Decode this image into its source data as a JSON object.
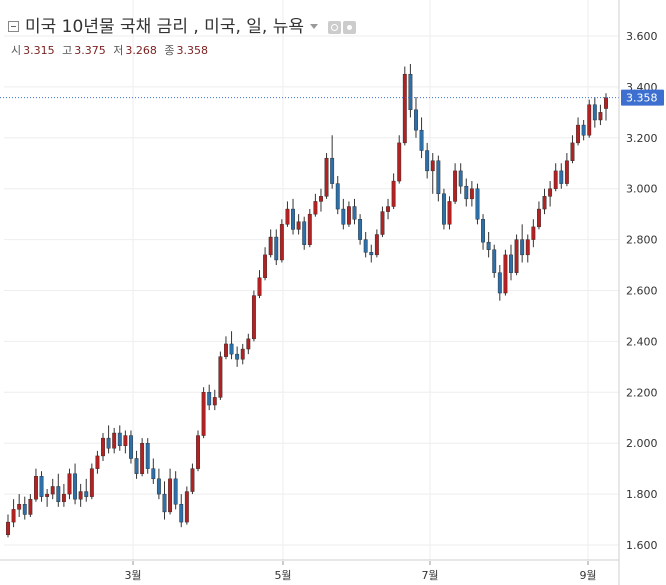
{
  "title": "미국 10년물 국채 금리 , 미국, 일, 뉴욕",
  "ohlc": {
    "open_label": "시",
    "open": "3.315",
    "high_label": "고",
    "high": "3.375",
    "low_label": "저",
    "low": "3.268",
    "close_label": "종",
    "close": "3.358"
  },
  "last_price_label": "3.358",
  "colors": {
    "up": "#b22222",
    "down": "#2e6fa8",
    "wick": "#333333",
    "last_line": "#3d6fd1",
    "last_badge": "#3d6fd1"
  },
  "chart_data": {
    "type": "candlestick",
    "x_tick_labels": [
      "3월",
      "5월",
      "7월",
      "9월"
    ],
    "y_tick_labels": [
      "3.600",
      "3.400",
      "3.200",
      "3.000",
      "2.800",
      "2.600",
      "2.400",
      "2.200",
      "2.000",
      "1.800",
      "1.600"
    ],
    "ylim": [
      1.55,
      3.65
    ],
    "last_price": 3.358,
    "candles": [
      [
        1.64,
        1.72,
        1.63,
        1.69
      ],
      [
        1.69,
        1.78,
        1.67,
        1.74
      ],
      [
        1.74,
        1.8,
        1.71,
        1.76
      ],
      [
        1.76,
        1.79,
        1.7,
        1.72
      ],
      [
        1.72,
        1.8,
        1.71,
        1.78
      ],
      [
        1.78,
        1.9,
        1.77,
        1.87
      ],
      [
        1.87,
        1.89,
        1.77,
        1.79
      ],
      [
        1.79,
        1.82,
        1.75,
        1.8
      ],
      [
        1.8,
        1.86,
        1.78,
        1.83
      ],
      [
        1.83,
        1.88,
        1.75,
        1.77
      ],
      [
        1.77,
        1.84,
        1.75,
        1.8
      ],
      [
        1.8,
        1.9,
        1.78,
        1.88
      ],
      [
        1.88,
        1.92,
        1.76,
        1.78
      ],
      [
        1.78,
        1.84,
        1.75,
        1.81
      ],
      [
        1.81,
        1.86,
        1.77,
        1.79
      ],
      [
        1.79,
        1.92,
        1.78,
        1.9
      ],
      [
        1.9,
        1.97,
        1.88,
        1.95
      ],
      [
        1.95,
        2.04,
        1.93,
        2.02
      ],
      [
        2.02,
        2.07,
        1.96,
        1.98
      ],
      [
        1.98,
        2.06,
        1.96,
        2.04
      ],
      [
        2.04,
        2.07,
        1.97,
        1.99
      ],
      [
        1.99,
        2.05,
        1.96,
        2.03
      ],
      [
        2.03,
        2.05,
        1.92,
        1.94
      ],
      [
        1.94,
        1.97,
        1.86,
        1.88
      ],
      [
        1.88,
        2.02,
        1.87,
        2.0
      ],
      [
        2.0,
        2.02,
        1.88,
        1.9
      ],
      [
        1.9,
        1.94,
        1.84,
        1.86
      ],
      [
        1.86,
        1.9,
        1.78,
        1.8
      ],
      [
        1.8,
        1.85,
        1.7,
        1.73
      ],
      [
        1.73,
        1.9,
        1.72,
        1.86
      ],
      [
        1.86,
        1.89,
        1.74,
        1.76
      ],
      [
        1.76,
        1.8,
        1.67,
        1.69
      ],
      [
        1.69,
        1.83,
        1.68,
        1.81
      ],
      [
        1.81,
        1.92,
        1.8,
        1.9
      ],
      [
        1.9,
        2.05,
        1.89,
        2.03
      ],
      [
        2.03,
        2.22,
        2.02,
        2.2
      ],
      [
        2.2,
        2.23,
        2.13,
        2.15
      ],
      [
        2.15,
        2.21,
        2.13,
        2.18
      ],
      [
        2.18,
        2.36,
        2.17,
        2.34
      ],
      [
        2.34,
        2.42,
        2.33,
        2.39
      ],
      [
        2.39,
        2.44,
        2.33,
        2.35
      ],
      [
        2.35,
        2.38,
        2.3,
        2.33
      ],
      [
        2.33,
        2.39,
        2.31,
        2.37
      ],
      [
        2.37,
        2.43,
        2.35,
        2.41
      ],
      [
        2.41,
        2.6,
        2.4,
        2.58
      ],
      [
        2.58,
        2.68,
        2.57,
        2.65
      ],
      [
        2.65,
        2.77,
        2.64,
        2.74
      ],
      [
        2.74,
        2.84,
        2.73,
        2.81
      ],
      [
        2.81,
        2.84,
        2.7,
        2.72
      ],
      [
        2.72,
        2.88,
        2.71,
        2.86
      ],
      [
        2.86,
        2.95,
        2.85,
        2.92
      ],
      [
        2.92,
        2.96,
        2.82,
        2.84
      ],
      [
        2.84,
        2.9,
        2.82,
        2.87
      ],
      [
        2.87,
        2.89,
        2.76,
        2.78
      ],
      [
        2.78,
        2.92,
        2.77,
        2.9
      ],
      [
        2.9,
        2.98,
        2.89,
        2.95
      ],
      [
        2.95,
        3.0,
        2.91,
        2.97
      ],
      [
        2.97,
        3.14,
        2.96,
        3.12
      ],
      [
        3.12,
        3.21,
        3.0,
        3.02
      ],
      [
        3.02,
        3.05,
        2.9,
        2.92
      ],
      [
        2.92,
        2.96,
        2.84,
        2.86
      ],
      [
        2.86,
        2.95,
        2.85,
        2.93
      ],
      [
        2.93,
        2.96,
        2.86,
        2.88
      ],
      [
        2.88,
        2.9,
        2.78,
        2.8
      ],
      [
        2.8,
        2.83,
        2.73,
        2.75
      ],
      [
        2.75,
        2.78,
        2.71,
        2.74
      ],
      [
        2.74,
        2.84,
        2.73,
        2.82
      ],
      [
        2.82,
        2.93,
        2.81,
        2.91
      ],
      [
        2.91,
        2.96,
        2.88,
        2.93
      ],
      [
        2.93,
        3.06,
        2.92,
        3.03
      ],
      [
        3.03,
        3.21,
        3.02,
        3.18
      ],
      [
        3.18,
        3.48,
        3.17,
        3.45
      ],
      [
        3.45,
        3.49,
        3.28,
        3.31
      ],
      [
        3.31,
        3.36,
        3.2,
        3.23
      ],
      [
        3.23,
        3.28,
        3.12,
        3.15
      ],
      [
        3.15,
        3.18,
        3.04,
        3.07
      ],
      [
        3.07,
        3.14,
        2.98,
        3.11
      ],
      [
        3.11,
        3.13,
        2.95,
        2.98
      ],
      [
        2.98,
        3.0,
        2.84,
        2.86
      ],
      [
        2.86,
        2.97,
        2.84,
        2.95
      ],
      [
        2.95,
        3.1,
        2.94,
        3.07
      ],
      [
        3.07,
        3.1,
        2.98,
        3.01
      ],
      [
        3.01,
        3.04,
        2.93,
        2.96
      ],
      [
        2.96,
        3.03,
        2.93,
        3.0
      ],
      [
        3.0,
        3.02,
        2.86,
        2.88
      ],
      [
        2.88,
        2.9,
        2.76,
        2.79
      ],
      [
        2.79,
        2.83,
        2.73,
        2.76
      ],
      [
        2.76,
        2.78,
        2.65,
        2.67
      ],
      [
        2.67,
        2.7,
        2.56,
        2.59
      ],
      [
        2.59,
        2.76,
        2.58,
        2.74
      ],
      [
        2.74,
        2.78,
        2.64,
        2.67
      ],
      [
        2.67,
        2.82,
        2.66,
        2.8
      ],
      [
        2.8,
        2.86,
        2.71,
        2.74
      ],
      [
        2.74,
        2.82,
        2.71,
        2.8
      ],
      [
        2.8,
        2.88,
        2.77,
        2.85
      ],
      [
        2.85,
        2.95,
        2.84,
        2.92
      ],
      [
        2.92,
        3.0,
        2.9,
        2.97
      ],
      [
        2.97,
        3.03,
        2.93,
        3.0
      ],
      [
        3.0,
        3.1,
        2.99,
        3.07
      ],
      [
        3.07,
        3.1,
        3.0,
        3.02
      ],
      [
        3.02,
        3.14,
        3.01,
        3.11
      ],
      [
        3.11,
        3.21,
        3.1,
        3.18
      ],
      [
        3.18,
        3.28,
        3.17,
        3.25
      ],
      [
        3.25,
        3.27,
        3.19,
        3.21
      ],
      [
        3.21,
        3.35,
        3.2,
        3.33
      ],
      [
        3.33,
        3.36,
        3.24,
        3.27
      ],
      [
        3.27,
        3.33,
        3.25,
        3.3
      ],
      [
        3.315,
        3.375,
        3.268,
        3.358
      ]
    ]
  }
}
